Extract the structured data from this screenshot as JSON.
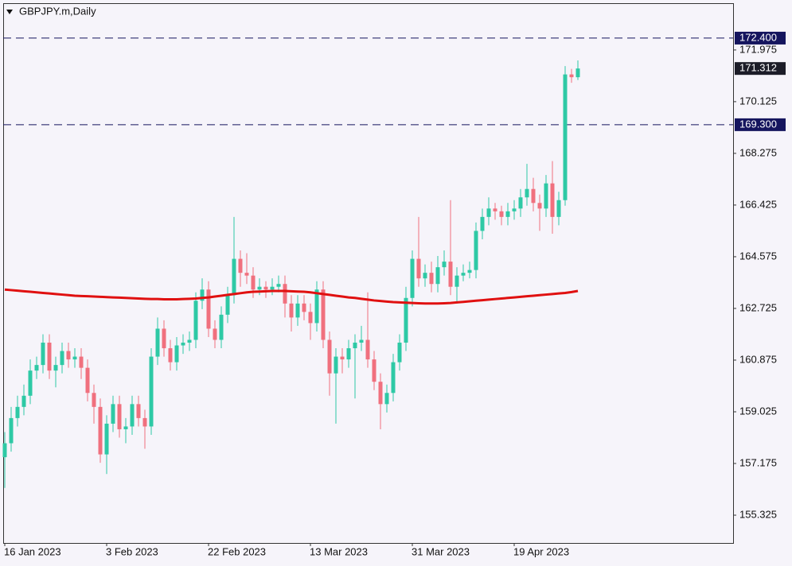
{
  "chart_data": {
    "type": "candlestick",
    "title": "GBPJPY.m,Daily",
    "categories": [
      "16 Jan 2023",
      null,
      null,
      null,
      null,
      null,
      null,
      null,
      null,
      null,
      null,
      null,
      null,
      null,
      null,
      null,
      "3 Feb 2023",
      null,
      null,
      null,
      null,
      null,
      null,
      null,
      null,
      null,
      null,
      null,
      null,
      null,
      null,
      null,
      "22 Feb 2023",
      null,
      null,
      null,
      null,
      null,
      null,
      null,
      null,
      null,
      null,
      null,
      null,
      null,
      null,
      null,
      "13 Mar 2023",
      null,
      null,
      null,
      null,
      null,
      null,
      null,
      null,
      null,
      null,
      null,
      null,
      null,
      null,
      null,
      "31 Mar 2023",
      null,
      null,
      null,
      null,
      null,
      null,
      null,
      null,
      null,
      null,
      null,
      null,
      null,
      null,
      null,
      "19 Apr 2023",
      null,
      null,
      null,
      null,
      null,
      null,
      null,
      null,
      null,
      null
    ],
    "open": [
      157.4,
      157.9,
      158.8,
      159.2,
      159.6,
      160.5,
      160.7,
      161.5,
      160.5,
      160.7,
      161.2,
      160.9,
      161.0,
      160.6,
      159.7,
      159.2,
      157.5,
      158.6,
      159.3,
      158.4,
      158.5,
      159.3,
      158.8,
      158.5,
      161.0,
      162.0,
      161.3,
      160.8,
      161.4,
      161.5,
      161.6,
      163.0,
      163.4,
      162.0,
      161.6,
      162.5,
      163.2,
      164.5,
      164.0,
      163.9,
      163.4,
      163.5,
      163.4,
      163.5,
      163.6,
      162.9,
      162.4,
      162.9,
      162.6,
      162.2,
      163.4,
      161.6,
      160.4,
      161.0,
      160.9,
      161.3,
      161.5,
      161.6,
      160.9,
      160.1,
      159.3,
      159.7,
      160.8,
      161.5,
      163.1,
      164.5,
      163.8,
      164.0,
      163.6,
      164.2,
      164.4,
      163.5,
      163.9,
      164.0,
      164.1,
      165.5,
      166.0,
      166.3,
      166.2,
      166.0,
      166.2,
      166.3,
      166.7,
      167.0,
      166.5,
      166.3,
      167.2,
      166.0,
      166.6,
      171.1,
      171.0
    ],
    "high": [
      158.3,
      159.2,
      159.6,
      160.0,
      160.9,
      161.0,
      161.8,
      161.8,
      161.0,
      161.5,
      161.5,
      161.3,
      161.3,
      160.9,
      160.0,
      159.5,
      158.9,
      159.6,
      159.6,
      158.8,
      159.6,
      159.6,
      159.1,
      161.3,
      162.4,
      162.3,
      161.6,
      161.7,
      161.8,
      161.9,
      163.3,
      163.8,
      163.7,
      162.3,
      162.8,
      163.5,
      166.0,
      164.8,
      164.7,
      164.2,
      163.8,
      163.7,
      163.8,
      163.9,
      163.9,
      163.2,
      163.2,
      163.2,
      162.9,
      163.7,
      163.7,
      161.9,
      161.3,
      161.3,
      161.6,
      161.8,
      162.1,
      163.3,
      161.2,
      160.4,
      160.0,
      161.1,
      161.8,
      163.5,
      164.8,
      166.0,
      164.3,
      164.4,
      164.6,
      164.8,
      166.6,
      164.2,
      164.3,
      164.4,
      165.8,
      166.3,
      166.7,
      166.5,
      166.4,
      166.5,
      166.6,
      167.0,
      167.9,
      167.4,
      166.8,
      167.5,
      168.0,
      166.9,
      171.4,
      171.3,
      171.6
    ],
    "low": [
      156.3,
      157.6,
      158.5,
      158.9,
      159.3,
      160.2,
      160.4,
      160.2,
      159.9,
      160.4,
      160.6,
      160.6,
      160.2,
      159.4,
      158.6,
      157.2,
      156.8,
      158.3,
      158.1,
      157.9,
      158.2,
      158.5,
      157.7,
      158.2,
      160.7,
      161.0,
      160.5,
      160.5,
      161.1,
      161.2,
      161.3,
      162.7,
      161.7,
      161.3,
      161.3,
      162.2,
      162.9,
      163.5,
      163.6,
      163.1,
      163.2,
      163.1,
      163.2,
      163.3,
      162.4,
      161.9,
      162.1,
      162.3,
      161.6,
      161.9,
      161.3,
      159.6,
      158.6,
      160.4,
      160.6,
      159.5,
      161.2,
      160.6,
      159.8,
      158.4,
      159.0,
      159.4,
      160.5,
      161.2,
      162.8,
      163.5,
      163.5,
      163.3,
      163.3,
      163.9,
      163.2,
      162.9,
      163.7,
      163.8,
      163.8,
      165.2,
      165.7,
      165.9,
      165.7,
      165.7,
      165.9,
      166.0,
      166.4,
      166.2,
      165.5,
      166.0,
      165.4,
      165.7,
      166.4,
      170.8,
      170.9
    ],
    "close": [
      157.9,
      158.8,
      159.2,
      159.6,
      160.5,
      160.7,
      161.5,
      160.5,
      160.7,
      161.2,
      160.9,
      161.0,
      160.6,
      159.7,
      159.2,
      157.5,
      158.6,
      159.3,
      158.4,
      158.5,
      159.3,
      158.8,
      158.5,
      161.0,
      162.0,
      161.3,
      160.8,
      161.4,
      161.5,
      161.6,
      163.0,
      163.4,
      162.0,
      161.6,
      162.5,
      163.2,
      164.5,
      164.0,
      163.9,
      163.4,
      163.5,
      163.4,
      163.5,
      163.6,
      162.9,
      162.4,
      162.9,
      162.6,
      162.2,
      163.4,
      161.6,
      160.4,
      161.0,
      160.9,
      161.3,
      161.5,
      161.6,
      160.9,
      160.1,
      159.3,
      159.7,
      160.8,
      161.5,
      163.1,
      164.5,
      163.8,
      164.0,
      163.6,
      164.2,
      164.4,
      163.5,
      163.9,
      164.0,
      164.1,
      165.5,
      166.0,
      166.3,
      166.2,
      166.0,
      166.2,
      166.3,
      166.7,
      167.0,
      166.5,
      166.3,
      167.2,
      166.0,
      166.6,
      171.1,
      171.0,
      171.312
    ],
    "up_color": "#2ec9a5",
    "down_color": "#f0707e",
    "ma": {
      "color": "#e01010",
      "values": [
        163.4,
        163.38,
        163.36,
        163.34,
        163.32,
        163.3,
        163.28,
        163.26,
        163.24,
        163.22,
        163.2,
        163.18,
        163.17,
        163.16,
        163.15,
        163.14,
        163.13,
        163.12,
        163.11,
        163.1,
        163.09,
        163.08,
        163.07,
        163.06,
        163.06,
        163.05,
        163.05,
        163.05,
        163.06,
        163.07,
        163.08,
        163.1,
        163.12,
        163.15,
        163.18,
        163.21,
        163.24,
        163.27,
        163.3,
        163.32,
        163.33,
        163.34,
        163.35,
        163.35,
        163.35,
        163.34,
        163.33,
        163.32,
        163.3,
        163.27,
        163.24,
        163.21,
        163.18,
        163.15,
        163.12,
        163.1,
        163.07,
        163.04,
        163.01,
        162.99,
        162.97,
        162.95,
        162.94,
        162.93,
        162.92,
        162.91,
        162.9,
        162.9,
        162.9,
        162.91,
        162.92,
        162.94,
        162.96,
        162.98,
        163.0,
        163.02,
        163.04,
        163.06,
        163.08,
        163.1,
        163.12,
        163.14,
        163.16,
        163.18,
        163.2,
        163.22,
        163.24,
        163.26,
        163.28,
        163.31,
        163.35
      ]
    },
    "hlines": [
      {
        "value": 172.4,
        "label": "172.400"
      },
      {
        "value": 169.3,
        "label": "169.300"
      }
    ],
    "hline_color": "#15155e",
    "last_price": 171.312,
    "ylim": [
      154.33,
      173.65
    ],
    "yticks": [
      155.325,
      157.175,
      159.025,
      160.875,
      162.725,
      164.575,
      166.425,
      168.275,
      170.125,
      171.975
    ]
  }
}
